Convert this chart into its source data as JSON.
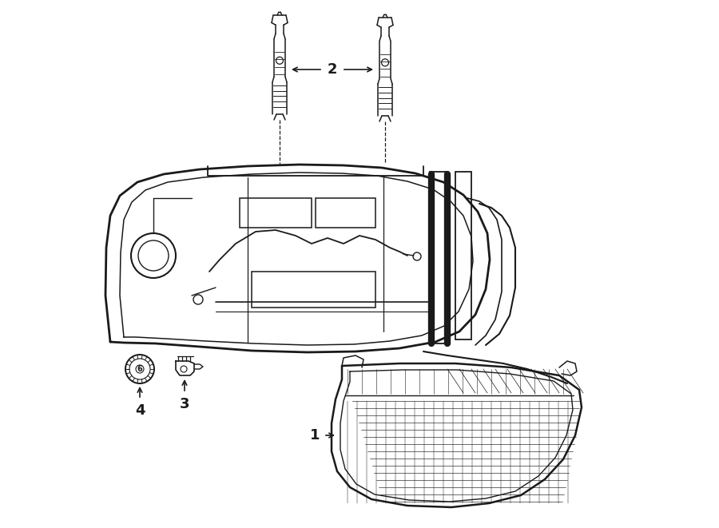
{
  "bg_color": "#ffffff",
  "line_color": "#1a1a1a",
  "fig_width": 9.0,
  "fig_height": 6.61,
  "label1": "1",
  "label2": "2",
  "label3": "3",
  "label4": "4",
  "label_fontsize": 13
}
